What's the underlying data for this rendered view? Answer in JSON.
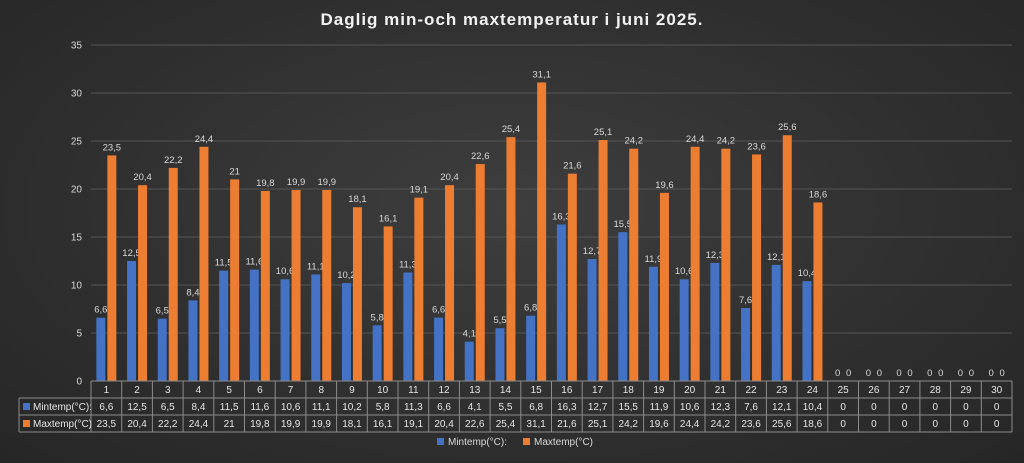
{
  "chart_data": {
    "type": "bar",
    "title": "Daglig min-och maxtemperatur i juni 2025.",
    "categories": [
      "1",
      "2",
      "3",
      "4",
      "5",
      "6",
      "7",
      "8",
      "9",
      "10",
      "11",
      "12",
      "13",
      "14",
      "15",
      "16",
      "17",
      "18",
      "19",
      "20",
      "21",
      "22",
      "23",
      "24",
      "25",
      "26",
      "27",
      "28",
      "29",
      "30"
    ],
    "series": [
      {
        "name": "Mintemp(°C):",
        "color": "#4472c4",
        "values": [
          6.6,
          12.5,
          6.5,
          8.4,
          11.5,
          11.6,
          10.6,
          11.1,
          10.2,
          5.8,
          11.3,
          6.6,
          4.1,
          5.5,
          6.8,
          16.3,
          12.7,
          15.5,
          11.9,
          10.6,
          12.3,
          7.6,
          12.1,
          10.4,
          0,
          0,
          0,
          0,
          0,
          0
        ],
        "labels": [
          "6,6",
          "12,5",
          "6,5",
          "8,4",
          "11,5",
          "11,6",
          "10,6",
          "11,1",
          "10,2",
          "5,8",
          "11,3",
          "6,6",
          "4,1",
          "5,5",
          "6,8",
          "16,3",
          "12,7",
          "15,5",
          "11,9",
          "10,6",
          "12,3",
          "7,6",
          "12,1",
          "10,4",
          "0",
          "0",
          "0",
          "0",
          "0",
          "0"
        ]
      },
      {
        "name": "Maxtemp(°C)",
        "color": "#ed7d31",
        "values": [
          23.5,
          20.4,
          22.2,
          24.4,
          21,
          19.8,
          19.9,
          19.9,
          18.1,
          16.1,
          19.1,
          20.4,
          22.6,
          25.4,
          31.1,
          21.6,
          25.1,
          24.2,
          19.6,
          24.4,
          24.2,
          23.6,
          25.6,
          18.6,
          0,
          0,
          0,
          0,
          0,
          0
        ],
        "labels": [
          "23,5",
          "20,4",
          "22,2",
          "24,4",
          "21",
          "19,8",
          "19,9",
          "19,9",
          "18,1",
          "16,1",
          "19,1",
          "20,4",
          "22,6",
          "25,4",
          "31,1",
          "21,6",
          "25,1",
          "24,2",
          "19,6",
          "24,4",
          "24,2",
          "23,6",
          "25,6",
          "18,6",
          "0",
          "0",
          "0",
          "0",
          "0",
          "0"
        ]
      }
    ],
    "yticks": [
      "0",
      "5",
      "10",
      "15",
      "20",
      "25",
      "30",
      "35"
    ],
    "ylim": [
      0,
      35
    ],
    "grid": true,
    "legend": "bottom",
    "data_table": true
  }
}
